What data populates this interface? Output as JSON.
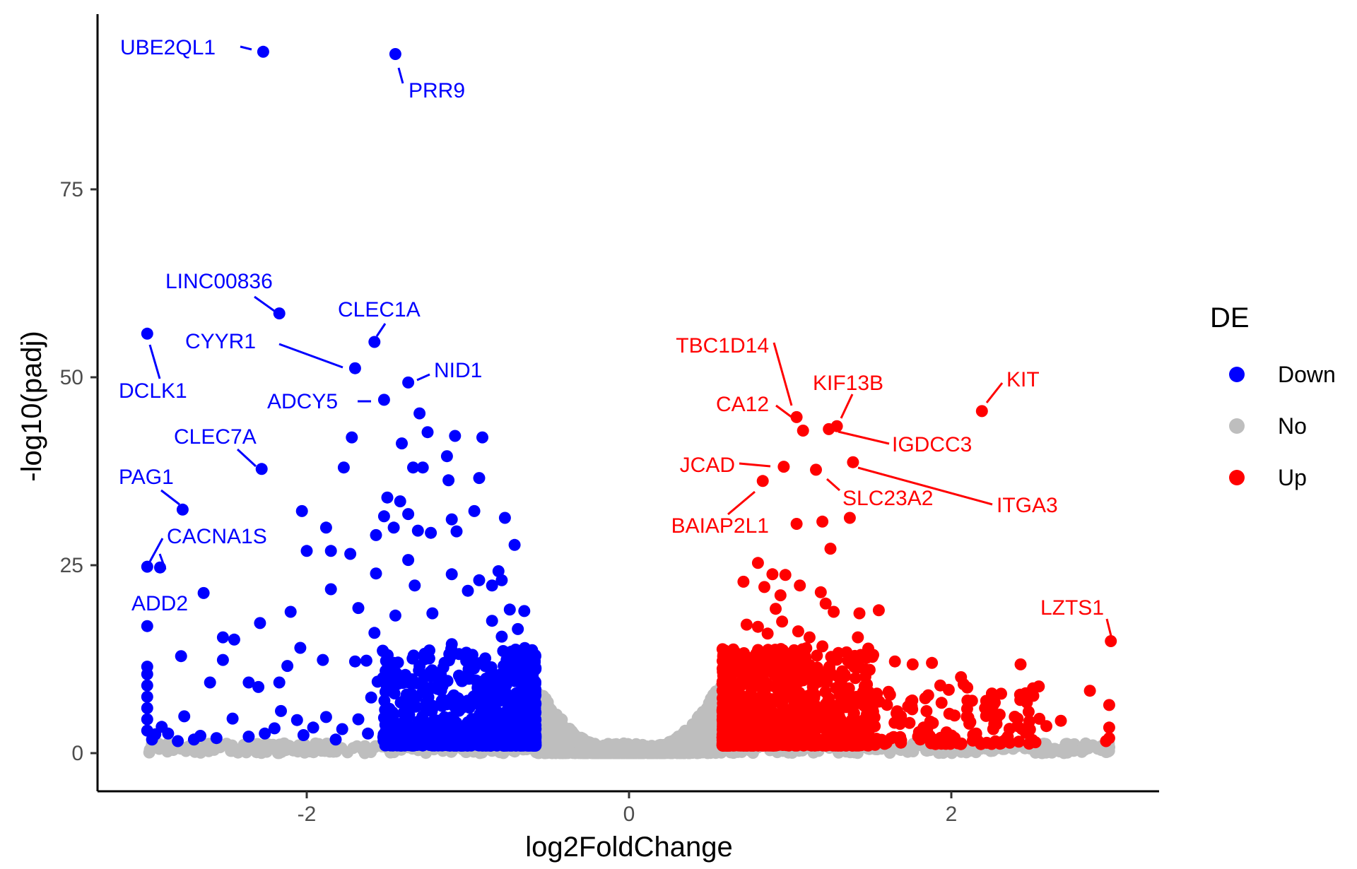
{
  "chart_data": {
    "type": "scatter",
    "xlabel": "log2FoldChange",
    "ylabel": "-log10(padj)",
    "xlim": [
      -3.3,
      3.3
    ],
    "ylim": [
      -3,
      98
    ],
    "x_ticks": [
      -2,
      0,
      2
    ],
    "y_ticks": [
      0,
      25,
      50,
      75
    ],
    "grid": false,
    "legend": {
      "title": "DE",
      "position": "right",
      "entries": [
        {
          "name": "Down",
          "color": "#0000ff"
        },
        {
          "name": "No",
          "color": "#bebebe"
        },
        {
          "name": "Up",
          "color": "#ff0000"
        }
      ]
    },
    "threshold_log2fc": 0.58,
    "labeled_points": [
      {
        "gene": "UBE2QL1",
        "x": -2.27,
        "y": 93.3,
        "group": "Down"
      },
      {
        "gene": "PRR9",
        "x": -1.45,
        "y": 93.0,
        "group": "Down"
      },
      {
        "gene": "LINC00836",
        "x": -2.17,
        "y": 58.5,
        "group": "Down"
      },
      {
        "gene": "DCLK1",
        "x": -2.99,
        "y": 55.8,
        "group": "Down"
      },
      {
        "gene": "CLEC1A",
        "x": -1.58,
        "y": 54.7,
        "group": "Down"
      },
      {
        "gene": "CYYR1",
        "x": -1.7,
        "y": 51.2,
        "group": "Down"
      },
      {
        "gene": "NID1",
        "x": -1.37,
        "y": 49.3,
        "group": "Down"
      },
      {
        "gene": "ADCY5",
        "x": -1.52,
        "y": 47.0,
        "group": "Down"
      },
      {
        "gene": "CLEC7A",
        "x": -2.28,
        "y": 37.8,
        "group": "Down"
      },
      {
        "gene": "PAG1",
        "x": -2.77,
        "y": 32.4,
        "group": "Down"
      },
      {
        "gene": "CACNA1S",
        "x": -2.99,
        "y": 24.8,
        "group": "Down"
      },
      {
        "gene": "ADD2",
        "x": -2.91,
        "y": 24.7,
        "group": "Down"
      },
      {
        "gene": "TBC1D14",
        "x": 1.04,
        "y": 44.7,
        "group": "Up"
      },
      {
        "gene": "KIF13B",
        "x": 1.29,
        "y": 43.5,
        "group": "Up"
      },
      {
        "gene": "KIT",
        "x": 2.19,
        "y": 45.5,
        "group": "Up"
      },
      {
        "gene": "CA12",
        "x": 1.08,
        "y": 42.9,
        "group": "Up"
      },
      {
        "gene": "IGDCC3",
        "x": 1.24,
        "y": 43.1,
        "group": "Up"
      },
      {
        "gene": "JCAD",
        "x": 0.96,
        "y": 38.1,
        "group": "Up"
      },
      {
        "gene": "ITGA3",
        "x": 1.39,
        "y": 38.7,
        "group": "Up"
      },
      {
        "gene": "BAIAP2L1",
        "x": 0.83,
        "y": 36.2,
        "group": "Up"
      },
      {
        "gene": "SLC23A2",
        "x": 1.16,
        "y": 37.7,
        "group": "Up"
      },
      {
        "gene": "LZTS1",
        "x": 2.99,
        "y": 14.9,
        "group": "Up"
      }
    ],
    "other_significant_down": [
      [
        -1.3,
        45.2
      ],
      [
        -1.08,
        42.2
      ],
      [
        -0.91,
        42.0
      ],
      [
        -1.25,
        42.7
      ],
      [
        -1.72,
        42.0
      ],
      [
        -1.77,
        38.0
      ],
      [
        -1.34,
        38.0
      ],
      [
        -1.28,
        38.0
      ],
      [
        -1.41,
        41.2
      ],
      [
        -1.13,
        39.5
      ],
      [
        -1.12,
        36.3
      ],
      [
        -0.93,
        36.6
      ],
      [
        -1.5,
        34.0
      ],
      [
        -1.42,
        33.5
      ],
      [
        -1.37,
        31.8
      ],
      [
        -1.52,
        31.5
      ],
      [
        -1.46,
        30.0
      ],
      [
        -1.31,
        29.6
      ],
      [
        -1.23,
        29.3
      ],
      [
        -1.1,
        31.1
      ],
      [
        -0.96,
        32.2
      ],
      [
        -0.77,
        31.3
      ],
      [
        -2.03,
        32.2
      ],
      [
        -1.88,
        30.0
      ],
      [
        -1.57,
        29.0
      ],
      [
        -1.07,
        29.5
      ],
      [
        -1.37,
        25.7
      ],
      [
        -1.57,
        23.9
      ],
      [
        -1.33,
        22.3
      ],
      [
        -1.1,
        23.8
      ],
      [
        -1.0,
        21.6
      ],
      [
        -0.93,
        23.0
      ],
      [
        -0.81,
        24.2
      ],
      [
        -0.71,
        27.7
      ],
      [
        -1.85,
        26.9
      ],
      [
        -1.73,
        26.5
      ],
      [
        -2.0,
        26.9
      ],
      [
        -1.85,
        21.8
      ],
      [
        -1.68,
        19.3
      ],
      [
        -2.1,
        18.8
      ],
      [
        -2.29,
        17.3
      ],
      [
        -2.64,
        21.3
      ],
      [
        -2.99,
        16.9
      ],
      [
        -2.52,
        15.4
      ],
      [
        -2.45,
        15.1
      ],
      [
        -2.04,
        14.0
      ],
      [
        -1.45,
        18.3
      ],
      [
        -1.58,
        16.0
      ],
      [
        -1.9,
        12.4
      ],
      [
        -1.7,
        12.2
      ],
      [
        -2.12,
        11.6
      ],
      [
        -2.78,
        12.9
      ],
      [
        -2.52,
        12.4
      ],
      [
        -2.6,
        9.4
      ],
      [
        -2.36,
        9.4
      ],
      [
        -2.3,
        8.8
      ],
      [
        -1.63,
        12.3
      ],
      [
        -2.17,
        9.4
      ],
      [
        -1.56,
        9.5
      ],
      [
        -1.45,
        9.8
      ],
      [
        -0.85,
        22.3
      ],
      [
        -0.79,
        23.0
      ],
      [
        -0.74,
        19.1
      ],
      [
        -0.69,
        16.5
      ],
      [
        -0.65,
        18.9
      ],
      [
        -0.85,
        17.6
      ],
      [
        -0.79,
        15.5
      ],
      [
        -0.74,
        13.4
      ],
      [
        -0.67,
        11.7
      ],
      [
        -0.66,
        9.4
      ],
      [
        -0.64,
        4.8
      ],
      [
        -0.67,
        6.6
      ],
      [
        -0.7,
        2.6
      ],
      [
        -0.73,
        5.5
      ],
      [
        -0.76,
        3.8
      ],
      [
        -0.78,
        8.9
      ],
      [
        -0.83,
        10.2
      ],
      [
        -0.86,
        6.8
      ],
      [
        -0.9,
        2.6
      ],
      [
        -0.94,
        8.7
      ],
      [
        -0.97,
        12.4
      ],
      [
        -1.0,
        4.1
      ],
      [
        -1.05,
        6.4
      ],
      [
        -1.1,
        14.5
      ],
      [
        -1.14,
        3.2
      ],
      [
        -1.18,
        9.3
      ],
      [
        -1.22,
        18.6
      ],
      [
        -1.26,
        5.6
      ],
      [
        -1.3,
        11.6
      ],
      [
        -1.34,
        3.2
      ],
      [
        -1.38,
        7.8
      ],
      [
        -1.46,
        12.0
      ],
      [
        -1.52,
        4.7
      ],
      [
        -1.6,
        7.4
      ],
      [
        -1.68,
        4.5
      ],
      [
        -1.78,
        3.2
      ],
      [
        -1.88,
        4.8
      ],
      [
        -1.96,
        3.4
      ],
      [
        -2.06,
        4.4
      ],
      [
        -2.16,
        5.6
      ],
      [
        -2.26,
        2.6
      ],
      [
        -2.36,
        2.2
      ],
      [
        -2.46,
        4.6
      ],
      [
        -2.56,
        2.0
      ],
      [
        -2.66,
        2.3
      ],
      [
        -2.76,
        4.9
      ],
      [
        -2.86,
        2.6
      ],
      [
        -2.96,
        1.8
      ],
      [
        -2.99,
        3.0
      ],
      [
        -2.99,
        4.5
      ],
      [
        -2.99,
        6.0
      ],
      [
        -2.99,
        7.5
      ],
      [
        -2.99,
        9.0
      ],
      [
        -2.99,
        10.5
      ],
      [
        -2.99,
        11.5
      ],
      [
        -2.94,
        2.5
      ],
      [
        -2.9,
        3.5
      ],
      [
        -2.8,
        1.6
      ],
      [
        -2.7,
        1.8
      ],
      [
        -2.2,
        3.3
      ],
      [
        -2.02,
        2.4
      ],
      [
        -1.82,
        1.8
      ],
      [
        -1.62,
        2.6
      ],
      [
        -1.4,
        2.0
      ],
      [
        -1.2,
        2.3
      ],
      [
        -1.06,
        1.8
      ],
      [
        -0.96,
        2.4
      ],
      [
        -0.88,
        1.8
      ]
    ]
  }
}
